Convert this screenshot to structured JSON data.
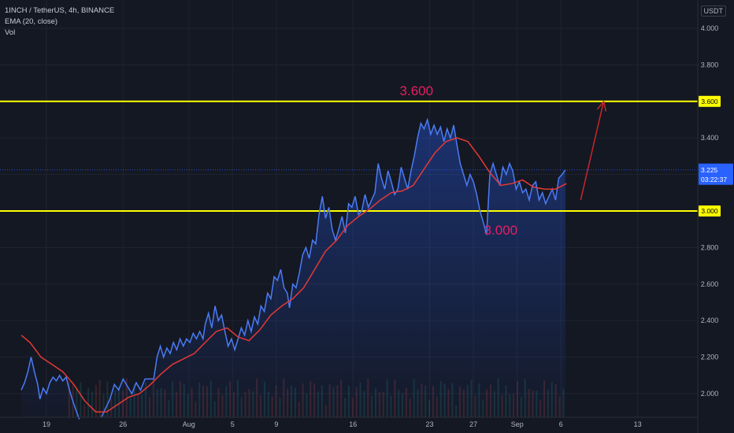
{
  "legend": {
    "symbol": "1INCH / TetherUS, 4h, BINANCE",
    "ema": "EMA (20, close)",
    "vol": "Vol"
  },
  "currency": "USDT",
  "colors": {
    "price": "#2962ff",
    "price_line": "#4b7bf5",
    "ema": "#e53935",
    "level": "#ffff00",
    "annotation": "#e91e63",
    "arrow": "#c62828",
    "current_price_tag": "#2962ff"
  },
  "chart_data": {
    "type": "line",
    "ylim": [
      1.88,
      4.12
    ],
    "y_ticks": [
      {
        "value": 4.0,
        "label": "4.000"
      },
      {
        "value": 3.8,
        "label": "3.800"
      },
      {
        "value": 3.4,
        "label": "3.400"
      },
      {
        "value": 2.8,
        "label": "2.800"
      },
      {
        "value": 2.6,
        "label": "2.600"
      },
      {
        "value": 2.4,
        "label": "2.400"
      },
      {
        "value": 2.2,
        "label": "2.200"
      },
      {
        "value": 2.0,
        "label": "2.000"
      }
    ],
    "x_ticks": [
      {
        "t": 0,
        "label": "19"
      },
      {
        "t": 7,
        "label": "26"
      },
      {
        "t": 13,
        "label": "Aug"
      },
      {
        "t": 17,
        "label": "5"
      },
      {
        "t": 21,
        "label": "9"
      },
      {
        "t": 28,
        "label": "16"
      },
      {
        "t": 35,
        "label": "23"
      },
      {
        "t": 39,
        "label": "27"
      },
      {
        "t": 43,
        "label": "Sep"
      },
      {
        "t": 47,
        "label": "6"
      },
      {
        "t": 54,
        "label": "13"
      }
    ],
    "x_range_days": [
      -2.3,
      57.5
    ],
    "series": [
      {
        "key": "price",
        "points": [
          [
            -2.3,
            2.02
          ],
          [
            -2,
            2.06
          ],
          [
            -1.7,
            2.12
          ],
          [
            -1.4,
            2.2
          ],
          [
            -1.1,
            2.12
          ],
          [
            -0.8,
            2.05
          ],
          [
            -0.6,
            1.97
          ],
          [
            -0.3,
            2.03
          ],
          [
            0,
            2.0
          ],
          [
            0.3,
            2.06
          ],
          [
            0.6,
            2.09
          ],
          [
            0.9,
            2.07
          ],
          [
            1.2,
            2.1
          ],
          [
            1.5,
            2.07
          ],
          [
            1.8,
            2.09
          ],
          [
            2.1,
            2.02
          ],
          [
            2.4,
            1.96
          ],
          [
            2.7,
            1.91
          ],
          [
            3.0,
            1.86
          ],
          [
            5.0,
            1.87
          ],
          [
            5.4,
            1.92
          ],
          [
            5.8,
            1.97
          ],
          [
            6.2,
            2.05
          ],
          [
            6.6,
            2.02
          ],
          [
            7.0,
            2.08
          ],
          [
            7.4,
            2.04
          ],
          [
            7.8,
            2.0
          ],
          [
            8.2,
            2.06
          ],
          [
            8.6,
            2.02
          ],
          [
            9.0,
            2.08
          ],
          [
            9.8,
            2.08
          ],
          [
            10.1,
            2.2
          ],
          [
            10.4,
            2.26
          ],
          [
            10.7,
            2.2
          ],
          [
            11.0,
            2.25
          ],
          [
            11.3,
            2.22
          ],
          [
            11.6,
            2.28
          ],
          [
            11.9,
            2.24
          ],
          [
            12.2,
            2.3
          ],
          [
            12.5,
            2.26
          ],
          [
            12.8,
            2.3
          ],
          [
            13.1,
            2.28
          ],
          [
            13.4,
            2.33
          ],
          [
            13.7,
            2.3
          ],
          [
            14.0,
            2.34
          ],
          [
            14.3,
            2.3
          ],
          [
            14.5,
            2.38
          ],
          [
            14.8,
            2.44
          ],
          [
            15.1,
            2.36
          ],
          [
            15.4,
            2.48
          ],
          [
            15.7,
            2.4
          ],
          [
            16.0,
            2.43
          ],
          [
            16.3,
            2.34
          ],
          [
            16.6,
            2.26
          ],
          [
            16.9,
            2.3
          ],
          [
            17.2,
            2.24
          ],
          [
            17.5,
            2.3
          ],
          [
            17.8,
            2.36
          ],
          [
            18.1,
            2.32
          ],
          [
            18.4,
            2.4
          ],
          [
            18.7,
            2.34
          ],
          [
            19.0,
            2.42
          ],
          [
            19.3,
            2.38
          ],
          [
            19.6,
            2.48
          ],
          [
            19.9,
            2.45
          ],
          [
            20.2,
            2.55
          ],
          [
            20.5,
            2.52
          ],
          [
            20.8,
            2.64
          ],
          [
            21.1,
            2.62
          ],
          [
            21.4,
            2.68
          ],
          [
            21.7,
            2.58
          ],
          [
            22.0,
            2.55
          ],
          [
            22.2,
            2.47
          ],
          [
            22.5,
            2.6
          ],
          [
            22.8,
            2.58
          ],
          [
            23.1,
            2.66
          ],
          [
            23.4,
            2.76
          ],
          [
            23.7,
            2.8
          ],
          [
            24.0,
            2.74
          ],
          [
            24.3,
            2.84
          ],
          [
            24.6,
            2.82
          ],
          [
            24.9,
            2.98
          ],
          [
            25.2,
            3.08
          ],
          [
            25.5,
            2.96
          ],
          [
            25.8,
            3.02
          ],
          [
            26.1,
            2.9
          ],
          [
            26.4,
            2.84
          ],
          [
            26.7,
            2.9
          ],
          [
            27.0,
            2.97
          ],
          [
            27.3,
            2.88
          ],
          [
            27.6,
            3.04
          ],
          [
            27.9,
            3.02
          ],
          [
            28.2,
            3.08
          ],
          [
            28.5,
            2.98
          ],
          [
            28.8,
            3.0
          ],
          [
            29.1,
            3.09
          ],
          [
            29.4,
            3.02
          ],
          [
            29.7,
            3.06
          ],
          [
            30.0,
            3.1
          ],
          [
            30.3,
            3.26
          ],
          [
            30.6,
            3.18
          ],
          [
            30.9,
            3.12
          ],
          [
            31.2,
            3.22
          ],
          [
            31.5,
            3.16
          ],
          [
            31.8,
            3.09
          ],
          [
            32.1,
            3.12
          ],
          [
            32.4,
            3.24
          ],
          [
            32.7,
            3.18
          ],
          [
            33.0,
            3.12
          ],
          [
            33.3,
            3.22
          ],
          [
            33.6,
            3.3
          ],
          [
            33.9,
            3.4
          ],
          [
            34.2,
            3.48
          ],
          [
            34.5,
            3.45
          ],
          [
            34.8,
            3.5
          ],
          [
            35.1,
            3.42
          ],
          [
            35.4,
            3.47
          ],
          [
            35.7,
            3.42
          ],
          [
            36.0,
            3.46
          ],
          [
            36.3,
            3.38
          ],
          [
            36.6,
            3.45
          ],
          [
            36.9,
            3.4
          ],
          [
            37.2,
            3.47
          ],
          [
            37.5,
            3.36
          ],
          [
            37.8,
            3.26
          ],
          [
            38.1,
            3.2
          ],
          [
            38.4,
            3.14
          ],
          [
            38.7,
            3.2
          ],
          [
            39.0,
            3.16
          ],
          [
            39.3,
            3.09
          ],
          [
            39.6,
            3.0
          ],
          [
            39.9,
            2.94
          ],
          [
            40.2,
            2.87
          ],
          [
            40.5,
            3.2
          ],
          [
            40.8,
            3.26
          ],
          [
            41.1,
            3.2
          ],
          [
            41.4,
            3.14
          ],
          [
            41.7,
            3.24
          ],
          [
            42.0,
            3.2
          ],
          [
            42.3,
            3.26
          ],
          [
            42.6,
            3.22
          ],
          [
            42.9,
            3.12
          ],
          [
            43.2,
            3.16
          ],
          [
            43.5,
            3.1
          ],
          [
            43.8,
            3.12
          ],
          [
            44.1,
            3.06
          ],
          [
            44.4,
            3.14
          ],
          [
            44.7,
            3.16
          ],
          [
            45.0,
            3.06
          ],
          [
            45.3,
            3.1
          ],
          [
            45.6,
            3.04
          ],
          [
            45.9,
            3.08
          ],
          [
            46.2,
            3.12
          ],
          [
            46.5,
            3.06
          ],
          [
            46.8,
            3.18
          ],
          [
            47.1,
            3.2
          ],
          [
            47.4,
            3.225
          ]
        ]
      },
      {
        "key": "ema",
        "points": [
          [
            -2.3,
            2.32
          ],
          [
            -1.5,
            2.28
          ],
          [
            -0.5,
            2.2
          ],
          [
            0.5,
            2.16
          ],
          [
            1.5,
            2.12
          ],
          [
            2.5,
            2.05
          ],
          [
            3.5,
            1.96
          ],
          [
            4.5,
            1.9
          ],
          [
            5.5,
            1.9
          ],
          [
            6.5,
            1.94
          ],
          [
            7.5,
            1.98
          ],
          [
            8.5,
            2.0
          ],
          [
            9.5,
            2.05
          ],
          [
            10.5,
            2.11
          ],
          [
            11.5,
            2.16
          ],
          [
            12.5,
            2.19
          ],
          [
            13.5,
            2.22
          ],
          [
            14.5,
            2.28
          ],
          [
            15.5,
            2.34
          ],
          [
            16.5,
            2.36
          ],
          [
            17.5,
            2.31
          ],
          [
            18.5,
            2.29
          ],
          [
            19.5,
            2.35
          ],
          [
            20.5,
            2.43
          ],
          [
            21.5,
            2.48
          ],
          [
            22.5,
            2.52
          ],
          [
            23.5,
            2.58
          ],
          [
            24.5,
            2.68
          ],
          [
            25.5,
            2.78
          ],
          [
            26.5,
            2.84
          ],
          [
            27.5,
            2.92
          ],
          [
            28.5,
            2.97
          ],
          [
            29.5,
            3.01
          ],
          [
            30.5,
            3.06
          ],
          [
            31.5,
            3.1
          ],
          [
            32.5,
            3.11
          ],
          [
            33.5,
            3.14
          ],
          [
            34.5,
            3.23
          ],
          [
            35.5,
            3.32
          ],
          [
            36.5,
            3.38
          ],
          [
            37.5,
            3.4
          ],
          [
            38.5,
            3.38
          ],
          [
            39.5,
            3.3
          ],
          [
            40.5,
            3.21
          ],
          [
            41.5,
            3.14
          ],
          [
            42.5,
            3.15
          ],
          [
            43.5,
            3.17
          ],
          [
            44.5,
            3.13
          ],
          [
            45.5,
            3.12
          ],
          [
            46.5,
            3.12
          ],
          [
            47.5,
            3.15
          ]
        ]
      }
    ],
    "levels": [
      {
        "value": 3.6,
        "label": "3.600",
        "annotation": "3.600"
      },
      {
        "value": 3.0,
        "label": "3.000",
        "annotation": "3.000"
      }
    ],
    "current_price": {
      "value": 3.225,
      "label": "3.225",
      "countdown": "03:22:37"
    },
    "arrow": {
      "from": [
        48.8,
        3.06
      ],
      "to": [
        50.9,
        3.6
      ]
    },
    "grid": true,
    "volume_bars": true
  }
}
